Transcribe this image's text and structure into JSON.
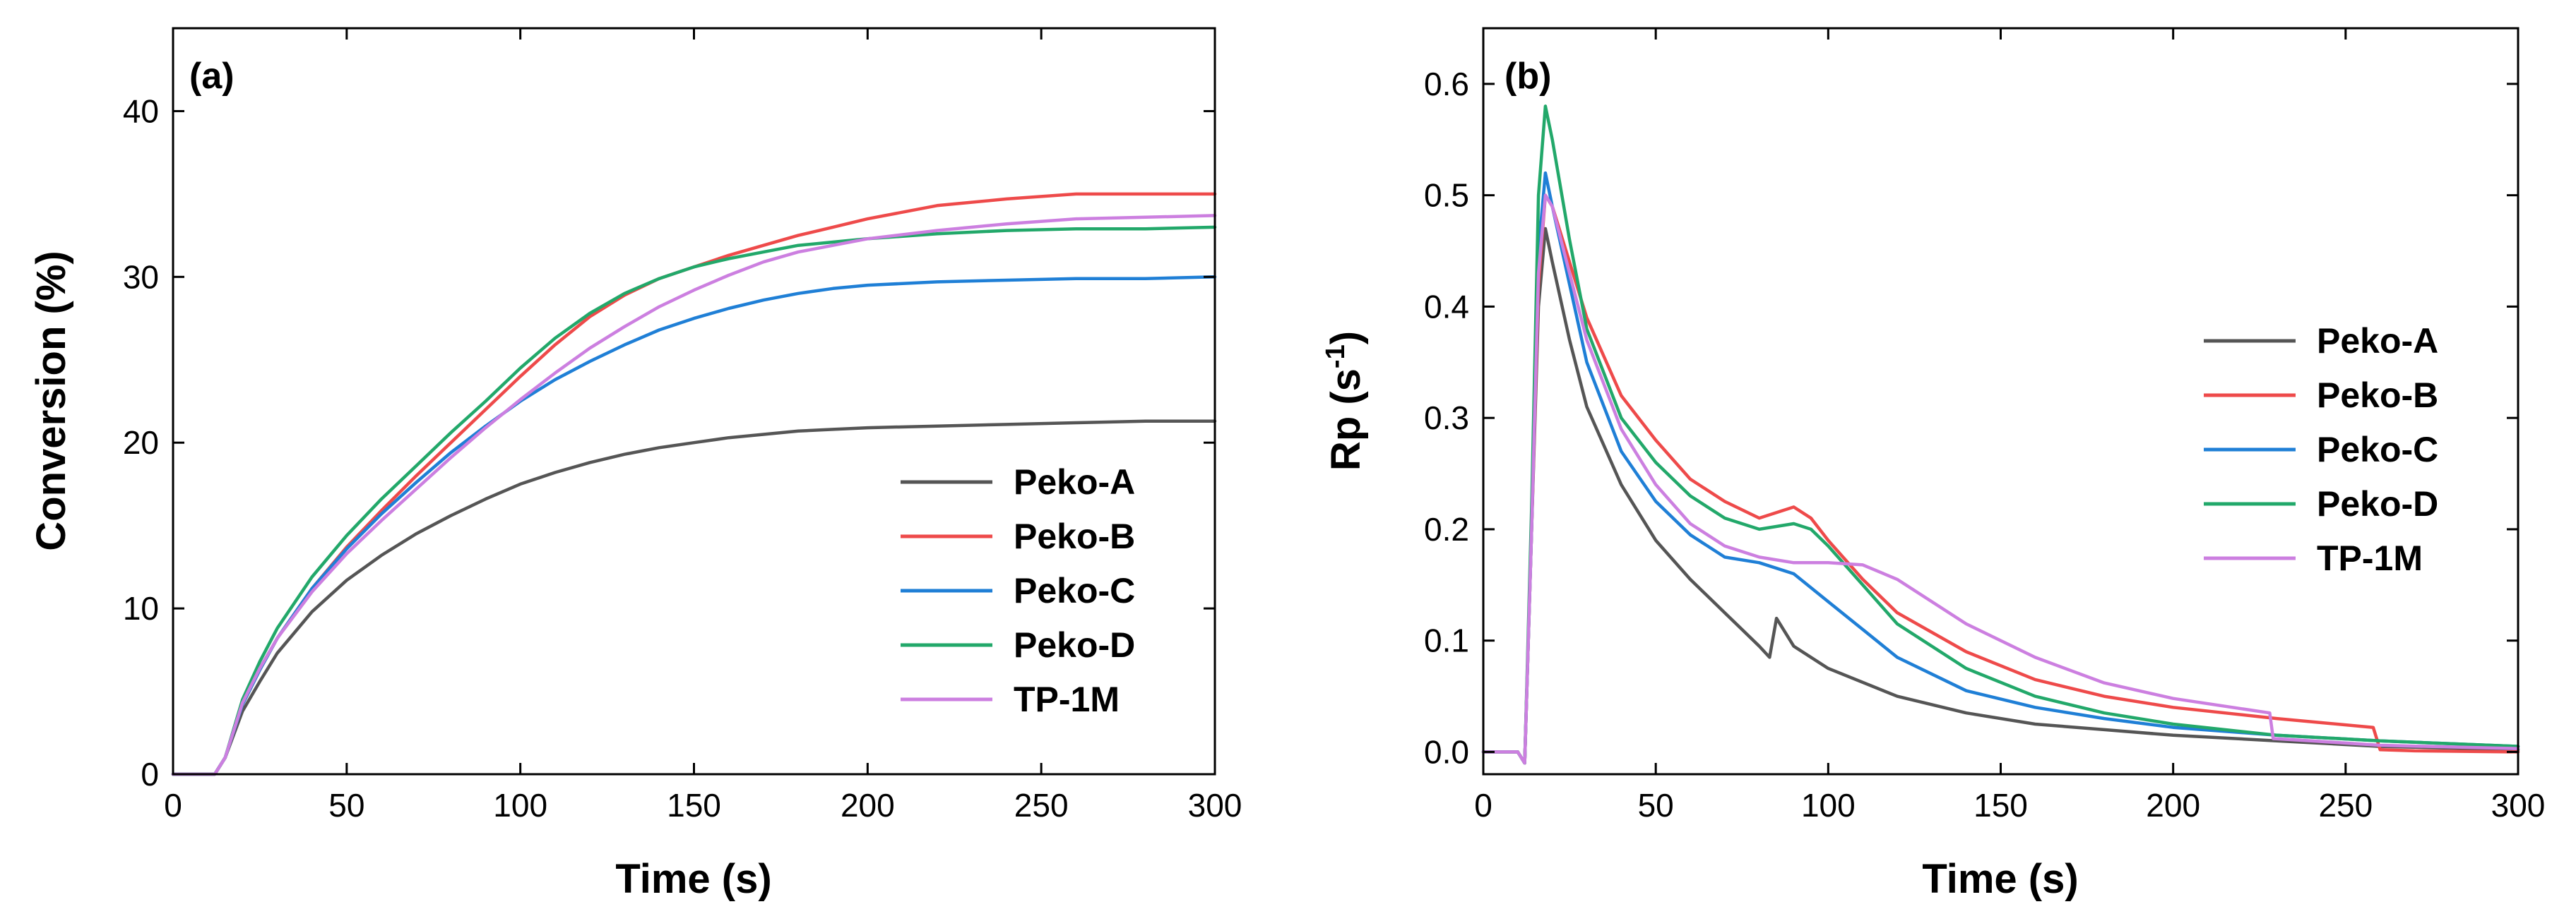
{
  "colors": {
    "Peko-A": "#555555",
    "Peko-B": "#ee4a4a",
    "Peko-C": "#1f7fd6",
    "Peko-D": "#22a86a",
    "TP-1M": "#cc7fe0"
  },
  "chart_data": [
    {
      "type": "line",
      "panel_label": "(a)",
      "title": "",
      "xlabel": "Time (s)",
      "ylabel": "Conversion (%)",
      "xlim": [
        0,
        300
      ],
      "ylim": [
        0,
        45
      ],
      "xticks": [
        0,
        50,
        100,
        150,
        200,
        250,
        300
      ],
      "yticks": [
        0,
        10,
        20,
        30,
        40
      ],
      "legend": "bottom-right",
      "series": [
        {
          "name": "Peko-A",
          "color_key": "Peko-A",
          "x": [
            0,
            12,
            15,
            20,
            25,
            30,
            40,
            50,
            60,
            70,
            80,
            90,
            100,
            110,
            120,
            130,
            140,
            150,
            160,
            170,
            180,
            190,
            200,
            220,
            240,
            260,
            280,
            300
          ],
          "y": [
            0,
            0,
            1,
            3.8,
            5.6,
            7.3,
            9.8,
            11.7,
            13.2,
            14.5,
            15.6,
            16.6,
            17.5,
            18.2,
            18.8,
            19.3,
            19.7,
            20.0,
            20.3,
            20.5,
            20.7,
            20.8,
            20.9,
            21.0,
            21.1,
            21.2,
            21.3,
            21.3
          ]
        },
        {
          "name": "Peko-B",
          "color_key": "Peko-B",
          "x": [
            0,
            12,
            15,
            20,
            25,
            30,
            40,
            50,
            60,
            70,
            80,
            90,
            100,
            110,
            120,
            130,
            140,
            150,
            160,
            170,
            180,
            190,
            200,
            220,
            240,
            260,
            280,
            300
          ],
          "y": [
            0,
            0,
            1,
            4.2,
            6.3,
            8.2,
            11.2,
            13.7,
            15.9,
            18.0,
            20.0,
            22.0,
            24.0,
            25.9,
            27.6,
            28.9,
            29.9,
            30.6,
            31.3,
            31.9,
            32.5,
            33.0,
            33.5,
            34.3,
            34.7,
            35.0,
            35.0,
            35.0
          ]
        },
        {
          "name": "Peko-C",
          "color_key": "Peko-C",
          "x": [
            0,
            12,
            15,
            20,
            25,
            30,
            40,
            50,
            60,
            70,
            80,
            90,
            100,
            110,
            120,
            130,
            140,
            150,
            160,
            170,
            180,
            190,
            200,
            220,
            240,
            260,
            280,
            300
          ],
          "y": [
            0,
            0,
            1,
            4.2,
            6.3,
            8.2,
            11.2,
            13.6,
            15.7,
            17.6,
            19.4,
            21.0,
            22.5,
            23.8,
            24.9,
            25.9,
            26.8,
            27.5,
            28.1,
            28.6,
            29.0,
            29.3,
            29.5,
            29.7,
            29.8,
            29.9,
            29.9,
            30.0
          ]
        },
        {
          "name": "Peko-D",
          "color_key": "Peko-D",
          "x": [
            0,
            12,
            15,
            20,
            25,
            30,
            40,
            50,
            60,
            70,
            80,
            90,
            100,
            110,
            120,
            130,
            140,
            150,
            160,
            170,
            180,
            190,
            200,
            220,
            240,
            260,
            280,
            300
          ],
          "y": [
            0,
            0,
            1,
            4.5,
            6.8,
            8.8,
            11.9,
            14.4,
            16.6,
            18.6,
            20.6,
            22.5,
            24.5,
            26.3,
            27.8,
            29.0,
            29.9,
            30.6,
            31.1,
            31.5,
            31.9,
            32.1,
            32.3,
            32.6,
            32.8,
            32.9,
            32.9,
            33.0
          ]
        },
        {
          "name": "TP-1M",
          "color_key": "TP-1M",
          "x": [
            0,
            12,
            15,
            20,
            25,
            30,
            40,
            50,
            60,
            70,
            80,
            90,
            100,
            110,
            120,
            130,
            140,
            150,
            160,
            170,
            180,
            190,
            200,
            220,
            240,
            260,
            280,
            300
          ],
          "y": [
            0,
            0,
            1,
            4.3,
            6.4,
            8.2,
            11.0,
            13.3,
            15.3,
            17.2,
            19.1,
            20.9,
            22.6,
            24.2,
            25.7,
            27.0,
            28.2,
            29.2,
            30.1,
            30.9,
            31.5,
            31.9,
            32.3,
            32.8,
            33.2,
            33.5,
            33.6,
            33.7
          ]
        }
      ]
    },
    {
      "type": "line",
      "panel_label": "(b)",
      "title": "",
      "xlabel": "Time (s)",
      "ylabel": "Rp (s",
      "ylabel_superscript": "-1",
      "ylabel_suffix": ")",
      "xlim": [
        0,
        300
      ],
      "ylim": [
        -0.02,
        0.65
      ],
      "xticks": [
        0,
        50,
        100,
        150,
        200,
        250,
        300
      ],
      "yticks": [
        0.0,
        0.1,
        0.2,
        0.3,
        0.4,
        0.5,
        0.6
      ],
      "ytick_labels": [
        "0.0",
        "0.1",
        "0.2",
        "0.3",
        "0.4",
        "0.5",
        "0.6"
      ],
      "legend": "center-right",
      "series": [
        {
          "name": "Peko-A",
          "color_key": "Peko-A",
          "x": [
            0,
            10,
            12,
            14,
            16,
            18,
            20,
            25,
            30,
            40,
            50,
            60,
            70,
            80,
            83,
            85,
            90,
            100,
            120,
            140,
            160,
            180,
            200,
            230,
            260,
            300
          ],
          "y": [
            0,
            0,
            -0.01,
            0.2,
            0.4,
            0.47,
            0.44,
            0.37,
            0.31,
            0.24,
            0.19,
            0.155,
            0.125,
            0.095,
            0.085,
            0.12,
            0.095,
            0.075,
            0.05,
            0.035,
            0.025,
            0.02,
            0.015,
            0.01,
            0.005,
            0.002
          ]
        },
        {
          "name": "Peko-B",
          "color_key": "Peko-B",
          "x": [
            0,
            10,
            12,
            14,
            16,
            18,
            20,
            25,
            30,
            40,
            50,
            60,
            70,
            80,
            90,
            95,
            100,
            110,
            120,
            140,
            160,
            180,
            200,
            230,
            258,
            260,
            270,
            300
          ],
          "y": [
            0,
            0,
            -0.01,
            0.2,
            0.42,
            0.5,
            0.49,
            0.44,
            0.39,
            0.32,
            0.28,
            0.245,
            0.225,
            0.21,
            0.22,
            0.21,
            0.19,
            0.155,
            0.125,
            0.09,
            0.065,
            0.05,
            0.04,
            0.03,
            0.022,
            0.002,
            0.001,
            0.0
          ]
        },
        {
          "name": "Peko-C",
          "color_key": "Peko-C",
          "x": [
            0,
            10,
            12,
            14,
            16,
            18,
            20,
            25,
            30,
            40,
            50,
            60,
            70,
            80,
            90,
            100,
            110,
            120,
            140,
            160,
            180,
            200,
            230,
            260,
            300
          ],
          "y": [
            0,
            0,
            -0.01,
            0.2,
            0.45,
            0.52,
            0.49,
            0.42,
            0.35,
            0.27,
            0.225,
            0.195,
            0.175,
            0.17,
            0.16,
            0.135,
            0.11,
            0.085,
            0.055,
            0.04,
            0.03,
            0.022,
            0.015,
            0.01,
            0.005
          ]
        },
        {
          "name": "Peko-D",
          "color_key": "Peko-D",
          "x": [
            0,
            10,
            12,
            14,
            16,
            18,
            20,
            25,
            30,
            40,
            50,
            60,
            70,
            80,
            90,
            95,
            100,
            110,
            120,
            140,
            160,
            180,
            200,
            230,
            260,
            300
          ],
          "y": [
            0,
            0,
            -0.01,
            0.22,
            0.5,
            0.58,
            0.55,
            0.46,
            0.38,
            0.3,
            0.26,
            0.23,
            0.21,
            0.2,
            0.205,
            0.2,
            0.185,
            0.15,
            0.115,
            0.075,
            0.05,
            0.035,
            0.025,
            0.015,
            0.01,
            0.005
          ]
        },
        {
          "name": "TP-1M",
          "color_key": "TP-1M",
          "x": [
            0,
            10,
            12,
            14,
            16,
            18,
            20,
            25,
            30,
            40,
            50,
            60,
            70,
            80,
            90,
            100,
            110,
            120,
            140,
            160,
            180,
            200,
            228,
            229,
            240,
            260,
            300
          ],
          "y": [
            0,
            0,
            -0.01,
            0.2,
            0.43,
            0.5,
            0.49,
            0.43,
            0.37,
            0.29,
            0.24,
            0.205,
            0.185,
            0.175,
            0.17,
            0.17,
            0.168,
            0.155,
            0.115,
            0.085,
            0.062,
            0.048,
            0.035,
            0.012,
            0.01,
            0.006,
            0.003
          ]
        }
      ]
    }
  ]
}
